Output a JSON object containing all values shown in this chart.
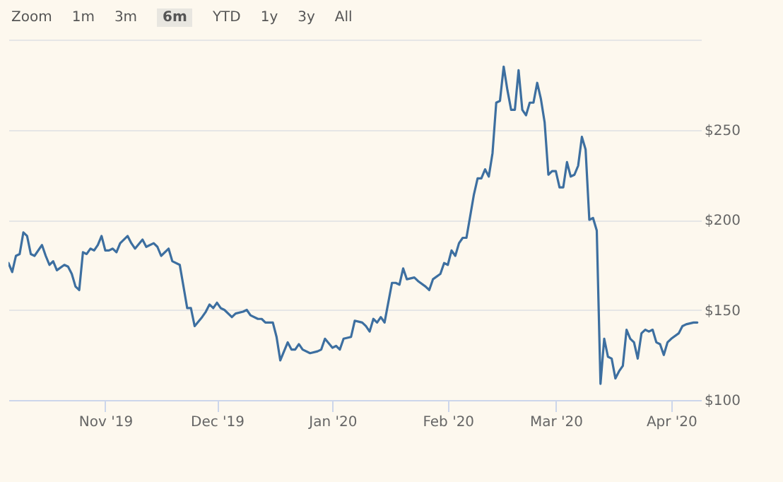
{
  "chart_data": {
    "type": "line",
    "annotations": [
      "Zoom",
      "1m",
      "3m",
      "6m",
      "YTD",
      "1y",
      "3y",
      "All"
    ],
    "x": [
      "2019-10-06",
      "2019-10-07",
      "2019-10-08",
      "2019-10-09",
      "2019-10-10",
      "2019-10-11",
      "2019-10-12",
      "2019-10-13",
      "2019-10-15",
      "2019-10-16",
      "2019-10-17",
      "2019-10-18",
      "2019-10-19",
      "2019-10-21",
      "2019-10-22",
      "2019-10-23",
      "2019-10-24",
      "2019-10-25",
      "2019-10-26",
      "2019-10-27",
      "2019-10-28",
      "2019-10-29",
      "2019-10-30",
      "2019-10-31",
      "2019-11-01",
      "2019-11-02",
      "2019-11-03",
      "2019-11-04",
      "2019-11-05",
      "2019-11-07",
      "2019-11-08",
      "2019-11-09",
      "2019-11-11",
      "2019-11-12",
      "2019-11-14",
      "2019-11-15",
      "2019-11-16",
      "2019-11-18",
      "2019-11-19",
      "2019-11-21",
      "2019-11-22",
      "2019-11-23",
      "2019-11-24",
      "2019-11-25",
      "2019-11-27",
      "2019-11-28",
      "2019-11-29",
      "2019-11-30",
      "2019-12-01",
      "2019-12-02",
      "2019-12-03",
      "2019-12-05",
      "2019-12-06",
      "2019-12-08",
      "2019-12-09",
      "2019-12-10",
      "2019-12-12",
      "2019-12-13",
      "2019-12-14",
      "2019-12-16",
      "2019-12-17",
      "2019-12-18",
      "2019-12-20",
      "2019-12-21",
      "2019-12-22",
      "2019-12-23",
      "2019-12-24",
      "2019-12-26",
      "2019-12-28",
      "2019-12-29",
      "2019-12-30",
      "2020-01-01",
      "2020-01-02",
      "2020-01-03",
      "2020-01-04",
      "2020-01-06",
      "2020-01-07",
      "2020-01-09",
      "2020-01-10",
      "2020-01-11",
      "2020-01-12",
      "2020-01-13",
      "2020-01-14",
      "2020-01-15",
      "2020-01-17",
      "2020-01-18",
      "2020-01-19",
      "2020-01-20",
      "2020-01-21",
      "2020-01-23",
      "2020-01-24",
      "2020-01-26",
      "2020-01-27",
      "2020-01-28",
      "2020-01-30",
      "2020-01-31",
      "2020-02-01",
      "2020-02-02",
      "2020-02-03",
      "2020-02-04",
      "2020-02-05",
      "2020-02-06",
      "2020-02-07",
      "2020-02-08",
      "2020-02-09",
      "2020-02-10",
      "2020-02-11",
      "2020-02-12",
      "2020-02-13",
      "2020-02-14",
      "2020-02-15",
      "2020-02-16",
      "2020-02-17",
      "2020-02-18",
      "2020-02-19",
      "2020-02-20",
      "2020-02-21",
      "2020-02-22",
      "2020-02-23",
      "2020-02-24",
      "2020-02-25",
      "2020-02-26",
      "2020-02-27",
      "2020-02-28",
      "2020-02-29",
      "2020-03-01",
      "2020-03-02",
      "2020-03-03",
      "2020-03-04",
      "2020-03-05",
      "2020-03-06",
      "2020-03-07",
      "2020-03-08",
      "2020-03-09",
      "2020-03-10",
      "2020-03-11",
      "2020-03-12",
      "2020-03-13",
      "2020-03-14",
      "2020-03-15",
      "2020-03-16",
      "2020-03-17",
      "2020-03-18",
      "2020-03-19",
      "2020-03-20",
      "2020-03-21",
      "2020-03-22",
      "2020-03-23",
      "2020-03-24",
      "2020-03-25",
      "2020-03-26",
      "2020-03-27",
      "2020-03-28",
      "2020-03-29",
      "2020-03-30",
      "2020-03-31",
      "2020-04-01",
      "2020-04-03",
      "2020-04-04",
      "2020-04-05",
      "2020-04-07",
      "2020-04-08"
    ],
    "series": [
      {
        "color": "#3d6fa0",
        "values": [
          176,
          171,
          180,
          181,
          193,
          191,
          181,
          180,
          186,
          180,
          175,
          177,
          172,
          175,
          174,
          170,
          163,
          161,
          182,
          181,
          184,
          183,
          186,
          191,
          183,
          183,
          184,
          182,
          187,
          191,
          187,
          184,
          189,
          185,
          187,
          185,
          180,
          184,
          177,
          175,
          163,
          151,
          151,
          141,
          146,
          149,
          153,
          151,
          154,
          151,
          150,
          146,
          148,
          149,
          150,
          147,
          145,
          145,
          143,
          143,
          135,
          122,
          132,
          128,
          128,
          131,
          128,
          126,
          127,
          128,
          134,
          129,
          130,
          128,
          134,
          135,
          144,
          143,
          141,
          138,
          145,
          143,
          146,
          143,
          165,
          165,
          164,
          173,
          167,
          168,
          166,
          163,
          161,
          167,
          170,
          176,
          175,
          183,
          180,
          187,
          190,
          190,
          202,
          214,
          223,
          223,
          228,
          224,
          237,
          265,
          266,
          285,
          272,
          261,
          261,
          283,
          261,
          258,
          265,
          265,
          276,
          267,
          254,
          225,
          227,
          227,
          218,
          218,
          232,
          224,
          225,
          230,
          246,
          239,
          200,
          201,
          194,
          109,
          134,
          124,
          123,
          112,
          116,
          119,
          139,
          134,
          132,
          123,
          137,
          139,
          138,
          139,
          132,
          131,
          125,
          132,
          134,
          137,
          141,
          142,
          143,
          143
        ]
      }
    ],
    "xlim": [
      "2019-10-06",
      "2020-04-09"
    ],
    "xticks": [
      {
        "value": "2019-11-01",
        "label": "Nov '19"
      },
      {
        "value": "2019-12-01",
        "label": "Dec '19"
      },
      {
        "value": "2020-01-01",
        "label": "Jan '20"
      },
      {
        "value": "2020-02-01",
        "label": "Feb '20"
      },
      {
        "value": "2020-03-01",
        "label": "Mar '20"
      },
      {
        "value": "2020-04-01",
        "label": "Apr '20"
      }
    ],
    "ylim": [
      100,
      300
    ],
    "yticks": [
      {
        "value": 100,
        "label": "$100"
      },
      {
        "value": 150,
        "label": "$150"
      },
      {
        "value": 200,
        "label": "$200"
      },
      {
        "value": 250,
        "label": "$250"
      },
      {
        "value": 300,
        "label": null
      }
    ],
    "grid": "y",
    "marker": "none",
    "line_style": "solid"
  }
}
